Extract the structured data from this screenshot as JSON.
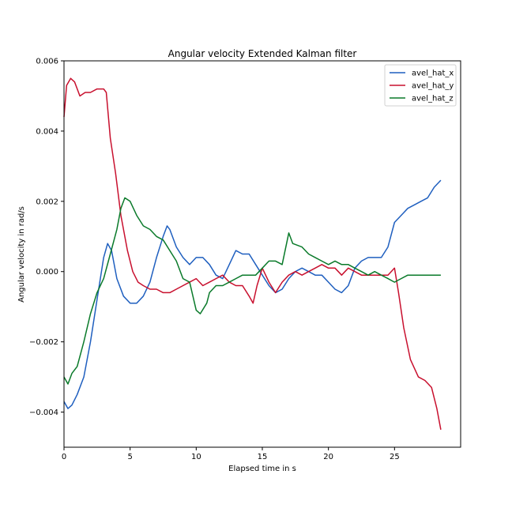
{
  "chart_data": {
    "type": "line",
    "title": "Angular velocity Extended Kalman filter",
    "xlabel": "Elapsed time in s",
    "ylabel": "Angular velocity in rad/s",
    "xlim": [
      0,
      30
    ],
    "ylim": [
      -0.005,
      0.006
    ],
    "xticks": [
      0,
      5,
      10,
      15,
      20,
      25
    ],
    "xtick_labels": [
      "0",
      "5",
      "10",
      "15",
      "20",
      "25"
    ],
    "yticks": [
      -0.004,
      -0.002,
      0.0,
      0.002,
      0.004,
      0.006
    ],
    "ytick_labels": [
      "−0.004",
      "−0.002",
      "0.000",
      "0.002",
      "0.004",
      "0.006"
    ],
    "grid": false,
    "legend_position": "top-right",
    "series": [
      {
        "name": "avel_hat_x",
        "color": "#1f5fbf",
        "points": [
          [
            0,
            -0.0037
          ],
          [
            0.3,
            -0.0039
          ],
          [
            0.6,
            -0.0038
          ],
          [
            1.0,
            -0.0035
          ],
          [
            1.5,
            -0.003
          ],
          [
            2.0,
            -0.002
          ],
          [
            2.5,
            -0.0008
          ],
          [
            3.0,
            0.0004
          ],
          [
            3.3,
            0.0008
          ],
          [
            3.6,
            0.0006
          ],
          [
            4.0,
            -0.0002
          ],
          [
            4.5,
            -0.0007
          ],
          [
            5.0,
            -0.0009
          ],
          [
            5.5,
            -0.0009
          ],
          [
            6.0,
            -0.0007
          ],
          [
            6.5,
            -0.0003
          ],
          [
            7.0,
            0.0004
          ],
          [
            7.5,
            0.001
          ],
          [
            7.8,
            0.0013
          ],
          [
            8.0,
            0.0012
          ],
          [
            8.5,
            0.0007
          ],
          [
            9.0,
            0.0004
          ],
          [
            9.5,
            0.0002
          ],
          [
            10.0,
            0.0004
          ],
          [
            10.5,
            0.0004
          ],
          [
            11.0,
            0.0002
          ],
          [
            11.5,
            -0.0001
          ],
          [
            12.0,
            -0.0002
          ],
          [
            12.5,
            0.0002
          ],
          [
            13.0,
            0.0006
          ],
          [
            13.5,
            0.0005
          ],
          [
            14.0,
            0.0005
          ],
          [
            14.5,
            0.0002
          ],
          [
            15.0,
            -0.0001
          ],
          [
            15.5,
            -0.0004
          ],
          [
            16.0,
            -0.0006
          ],
          [
            16.5,
            -0.0005
          ],
          [
            17.0,
            -0.0002
          ],
          [
            17.5,
            0.0
          ],
          [
            18.0,
            0.0001
          ],
          [
            18.5,
            0.0
          ],
          [
            19.0,
            -0.0001
          ],
          [
            19.5,
            -0.0001
          ],
          [
            20.0,
            -0.0003
          ],
          [
            20.5,
            -0.0005
          ],
          [
            21.0,
            -0.0006
          ],
          [
            21.5,
            -0.0004
          ],
          [
            22.0,
            0.0001
          ],
          [
            22.5,
            0.0003
          ],
          [
            23.0,
            0.0004
          ],
          [
            23.5,
            0.0004
          ],
          [
            24.0,
            0.0004
          ],
          [
            24.5,
            0.0007
          ],
          [
            25.0,
            0.0014
          ],
          [
            25.5,
            0.0016
          ],
          [
            26.0,
            0.0018
          ],
          [
            26.5,
            0.0019
          ],
          [
            27.0,
            0.002
          ],
          [
            27.5,
            0.0021
          ],
          [
            28.0,
            0.0024
          ],
          [
            28.5,
            0.0026
          ]
        ]
      },
      {
        "name": "avel_hat_y",
        "color": "#c8102e",
        "points": [
          [
            0,
            0.0044
          ],
          [
            0.2,
            0.0053
          ],
          [
            0.5,
            0.0055
          ],
          [
            0.8,
            0.0054
          ],
          [
            1.2,
            0.005
          ],
          [
            1.6,
            0.0051
          ],
          [
            2.0,
            0.0051
          ],
          [
            2.5,
            0.0052
          ],
          [
            3.0,
            0.0052
          ],
          [
            3.2,
            0.0051
          ],
          [
            3.5,
            0.0038
          ],
          [
            3.9,
            0.0028
          ],
          [
            4.3,
            0.0016
          ],
          [
            4.8,
            0.0006
          ],
          [
            5.2,
            0.0
          ],
          [
            5.6,
            -0.0003
          ],
          [
            6.0,
            -0.0004
          ],
          [
            6.5,
            -0.0005
          ],
          [
            7.0,
            -0.0005
          ],
          [
            7.5,
            -0.0006
          ],
          [
            8.0,
            -0.0006
          ],
          [
            8.5,
            -0.0005
          ],
          [
            9.0,
            -0.0004
          ],
          [
            9.5,
            -0.0003
          ],
          [
            10.0,
            -0.0002
          ],
          [
            10.5,
            -0.0004
          ],
          [
            11.0,
            -0.0003
          ],
          [
            11.5,
            -0.0002
          ],
          [
            12.0,
            -0.0001
          ],
          [
            12.5,
            -0.0003
          ],
          [
            13.0,
            -0.0004
          ],
          [
            13.5,
            -0.0004
          ],
          [
            14.0,
            -0.0007
          ],
          [
            14.3,
            -0.0009
          ],
          [
            14.6,
            -0.0004
          ],
          [
            15.0,
            0.0001
          ],
          [
            15.5,
            -0.0003
          ],
          [
            16.0,
            -0.0006
          ],
          [
            16.5,
            -0.0003
          ],
          [
            17.0,
            -0.0001
          ],
          [
            17.5,
            0.0
          ],
          [
            18.0,
            -0.0001
          ],
          [
            18.5,
            0.0
          ],
          [
            19.0,
            0.0001
          ],
          [
            19.5,
            0.0002
          ],
          [
            20.0,
            0.0001
          ],
          [
            20.5,
            0.0001
          ],
          [
            21.0,
            -0.0001
          ],
          [
            21.5,
            0.0001
          ],
          [
            22.0,
            0.0
          ],
          [
            22.5,
            -0.0001
          ],
          [
            23.0,
            -0.0001
          ],
          [
            23.5,
            -0.0001
          ],
          [
            24.0,
            -0.0001
          ],
          [
            24.5,
            -0.0001
          ],
          [
            25.0,
            0.0001
          ],
          [
            25.3,
            -0.0006
          ],
          [
            25.7,
            -0.0016
          ],
          [
            26.2,
            -0.0025
          ],
          [
            26.8,
            -0.003
          ],
          [
            27.3,
            -0.0031
          ],
          [
            27.8,
            -0.0033
          ],
          [
            28.2,
            -0.0039
          ],
          [
            28.5,
            -0.0045
          ]
        ]
      },
      {
        "name": "avel_hat_z",
        "color": "#0a7a2a",
        "points": [
          [
            0,
            -0.003
          ],
          [
            0.3,
            -0.0032
          ],
          [
            0.6,
            -0.0029
          ],
          [
            1.0,
            -0.0027
          ],
          [
            1.5,
            -0.002
          ],
          [
            2.0,
            -0.0012
          ],
          [
            2.5,
            -0.0006
          ],
          [
            3.0,
            -0.0002
          ],
          [
            3.5,
            0.0005
          ],
          [
            4.0,
            0.0012
          ],
          [
            4.3,
            0.0018
          ],
          [
            4.6,
            0.0021
          ],
          [
            5.0,
            0.002
          ],
          [
            5.5,
            0.0016
          ],
          [
            6.0,
            0.0013
          ],
          [
            6.5,
            0.0012
          ],
          [
            7.0,
            0.001
          ],
          [
            7.5,
            0.0009
          ],
          [
            8.0,
            0.0006
          ],
          [
            8.5,
            0.0003
          ],
          [
            9.0,
            -0.0002
          ],
          [
            9.5,
            -0.0003
          ],
          [
            10.0,
            -0.0011
          ],
          [
            10.3,
            -0.0012
          ],
          [
            10.8,
            -0.0009
          ],
          [
            11.0,
            -0.0006
          ],
          [
            11.5,
            -0.0004
          ],
          [
            12.0,
            -0.0004
          ],
          [
            12.5,
            -0.0003
          ],
          [
            13.0,
            -0.0002
          ],
          [
            13.5,
            -0.0001
          ],
          [
            14.0,
            -0.0001
          ],
          [
            14.5,
            -0.0001
          ],
          [
            15.0,
            0.0001
          ],
          [
            15.5,
            0.0003
          ],
          [
            16.0,
            0.0003
          ],
          [
            16.5,
            0.0002
          ],
          [
            17.0,
            0.0011
          ],
          [
            17.3,
            0.0008
          ],
          [
            18.0,
            0.0007
          ],
          [
            18.5,
            0.0005
          ],
          [
            19.0,
            0.0004
          ],
          [
            19.5,
            0.0003
          ],
          [
            20.0,
            0.0002
          ],
          [
            20.5,
            0.0003
          ],
          [
            21.0,
            0.0002
          ],
          [
            21.5,
            0.0002
          ],
          [
            22.0,
            0.0001
          ],
          [
            22.5,
            0.0
          ],
          [
            23.0,
            -0.0001
          ],
          [
            23.5,
            0.0
          ],
          [
            24.0,
            -0.0001
          ],
          [
            24.5,
            -0.0002
          ],
          [
            25.0,
            -0.0003
          ],
          [
            25.5,
            -0.0002
          ],
          [
            26.0,
            -0.0001
          ],
          [
            27.0,
            -0.0001
          ],
          [
            28.0,
            -0.0001
          ],
          [
            28.5,
            -0.0001
          ]
        ]
      }
    ]
  }
}
